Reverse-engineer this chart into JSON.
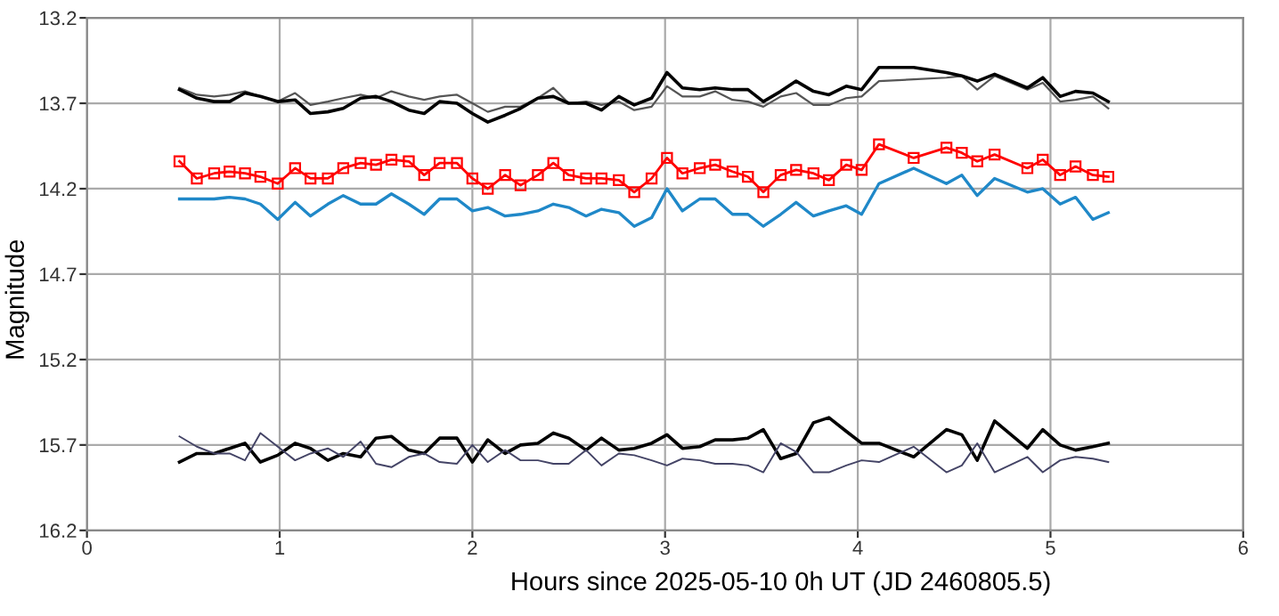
{
  "chart_data": {
    "type": "line",
    "xlabel": "Hours since 2025-05-10 0h UT (JD 2460805.5)",
    "ylabel": "Magnitude",
    "x": [
      0.48,
      0.57,
      0.66,
      0.74,
      0.82,
      0.9,
      0.99,
      1.08,
      1.16,
      1.25,
      1.33,
      1.42,
      1.5,
      1.58,
      1.67,
      1.75,
      1.83,
      1.92,
      2.0,
      2.08,
      2.17,
      2.25,
      2.34,
      2.42,
      2.5,
      2.59,
      2.67,
      2.76,
      2.84,
      2.93,
      3.01,
      3.09,
      3.18,
      3.26,
      3.35,
      3.43,
      3.51,
      3.6,
      3.68,
      3.77,
      3.85,
      3.94,
      4.02,
      4.11,
      4.29,
      4.46,
      4.54,
      4.62,
      4.71,
      4.88,
      4.96,
      5.05,
      5.13,
      5.22,
      5.3
    ],
    "series": [
      {
        "color": "#555555",
        "marker": "none",
        "values": [
          13.61,
          13.65,
          13.66,
          13.65,
          13.63,
          13.66,
          13.69,
          13.64,
          13.71,
          13.69,
          13.67,
          13.65,
          13.67,
          13.63,
          13.66,
          13.68,
          13.66,
          13.65,
          13.7,
          13.75,
          13.72,
          13.72,
          13.67,
          13.61,
          13.7,
          13.69,
          13.71,
          13.69,
          13.74,
          13.72,
          13.6,
          13.66,
          13.66,
          13.63,
          13.68,
          13.69,
          13.72,
          13.66,
          13.64,
          13.71,
          13.71,
          13.67,
          13.66,
          13.57,
          13.56,
          13.55,
          13.54,
          13.62,
          13.54,
          13.62,
          13.58,
          13.69,
          13.68,
          13.66,
          13.73
        ]
      },
      {
        "color": "#000000",
        "marker": "none",
        "values": [
          13.62,
          13.67,
          13.69,
          13.69,
          13.64,
          13.66,
          13.69,
          13.68,
          13.76,
          13.75,
          13.73,
          13.67,
          13.66,
          13.69,
          13.74,
          13.76,
          13.69,
          13.7,
          13.76,
          13.81,
          13.77,
          13.73,
          13.67,
          13.66,
          13.7,
          13.7,
          13.74,
          13.66,
          13.71,
          13.67,
          13.52,
          13.61,
          13.62,
          13.61,
          13.62,
          13.62,
          13.69,
          13.63,
          13.57,
          13.63,
          13.65,
          13.6,
          13.62,
          13.49,
          13.49,
          13.52,
          13.54,
          13.57,
          13.53,
          13.61,
          13.55,
          13.66,
          13.63,
          13.64,
          13.69
        ]
      },
      {
        "color": "#ff0000",
        "marker": "square",
        "values": [
          14.04,
          14.14,
          14.11,
          14.1,
          14.11,
          14.13,
          14.17,
          14.08,
          14.14,
          14.14,
          14.08,
          14.05,
          14.06,
          14.03,
          14.04,
          14.12,
          14.05,
          14.05,
          14.14,
          14.2,
          14.12,
          14.18,
          14.12,
          14.05,
          14.12,
          14.14,
          14.14,
          14.15,
          14.22,
          14.14,
          14.02,
          14.11,
          14.08,
          14.06,
          14.1,
          14.13,
          14.22,
          14.12,
          14.09,
          14.11,
          14.15,
          14.06,
          14.09,
          13.94,
          14.02,
          13.96,
          13.99,
          14.04,
          14.0,
          14.08,
          14.03,
          14.12,
          14.07,
          14.12,
          14.13
        ]
      },
      {
        "color": "#1f88c8",
        "marker": "none",
        "values": [
          14.26,
          14.26,
          14.26,
          14.25,
          14.26,
          14.29,
          14.38,
          14.28,
          14.36,
          14.29,
          14.24,
          14.29,
          14.29,
          14.23,
          14.29,
          14.35,
          14.26,
          14.26,
          14.33,
          14.31,
          14.36,
          14.35,
          14.33,
          14.29,
          14.31,
          14.36,
          14.32,
          14.34,
          14.42,
          14.37,
          14.2,
          14.33,
          14.26,
          14.26,
          14.35,
          14.35,
          14.42,
          14.35,
          14.28,
          14.36,
          14.33,
          14.3,
          14.35,
          14.17,
          14.08,
          14.17,
          14.12,
          14.24,
          14.14,
          14.22,
          14.2,
          14.29,
          14.25,
          14.38,
          14.34
        ]
      },
      {
        "color": "#000000",
        "marker": "none",
        "values": [
          15.8,
          15.75,
          15.75,
          15.72,
          15.69,
          15.8,
          15.76,
          15.69,
          15.72,
          15.79,
          15.75,
          15.77,
          15.66,
          15.65,
          15.73,
          15.75,
          15.66,
          15.66,
          15.8,
          15.67,
          15.75,
          15.7,
          15.69,
          15.63,
          15.66,
          15.73,
          15.66,
          15.73,
          15.72,
          15.69,
          15.64,
          15.72,
          15.71,
          15.67,
          15.67,
          15.66,
          15.61,
          15.78,
          15.75,
          15.57,
          15.54,
          15.62,
          15.69,
          15.69,
          15.77,
          15.61,
          15.64,
          15.79,
          15.56,
          15.72,
          15.61,
          15.7,
          15.73,
          15.71,
          15.69
        ]
      },
      {
        "color": "#444466",
        "marker": "none",
        "values": [
          15.65,
          15.71,
          15.75,
          15.75,
          15.79,
          15.63,
          15.71,
          15.79,
          15.75,
          15.72,
          15.77,
          15.68,
          15.81,
          15.83,
          15.77,
          15.75,
          15.8,
          15.81,
          15.7,
          15.8,
          15.73,
          15.79,
          15.79,
          15.81,
          15.81,
          15.73,
          15.82,
          15.75,
          15.76,
          15.79,
          15.82,
          15.78,
          15.79,
          15.81,
          15.81,
          15.82,
          15.86,
          15.69,
          15.74,
          15.86,
          15.86,
          15.82,
          15.79,
          15.8,
          15.71,
          15.86,
          15.82,
          15.69,
          15.86,
          15.77,
          15.86,
          15.79,
          15.77,
          15.78,
          15.8
        ]
      }
    ],
    "xlim": [
      0,
      6
    ],
    "xticks": [
      0,
      1,
      2,
      3,
      4,
      5,
      6
    ],
    "ylim": [
      16.2,
      13.2
    ],
    "yticks": [
      13.2,
      13.7,
      14.2,
      14.7,
      15.2,
      15.7,
      16.2
    ],
    "grid": true,
    "line_style": "solid"
  }
}
